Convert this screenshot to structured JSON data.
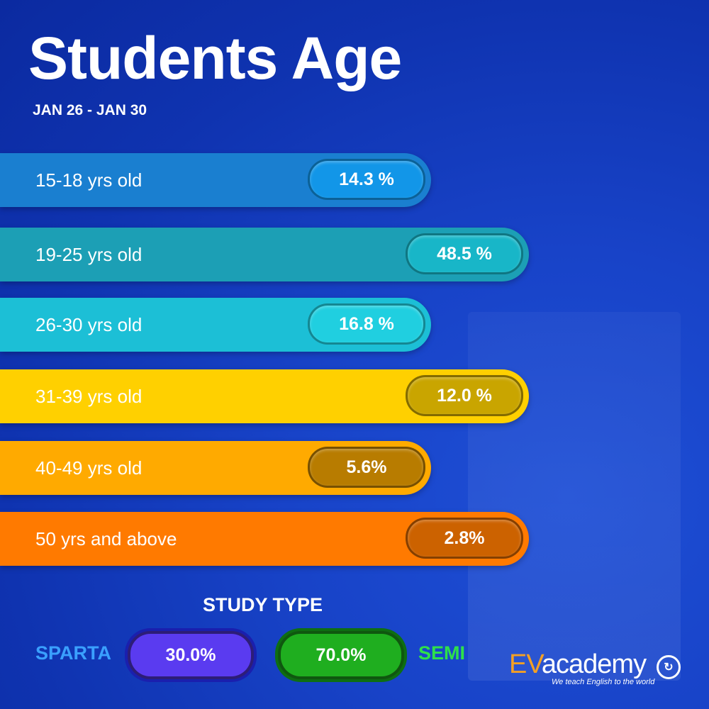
{
  "title": "Students Age",
  "subtitle": "JAN 26 - JAN 30",
  "chart_data": {
    "type": "bar",
    "title": "Students Age",
    "categories": [
      "15-18 yrs old",
      "19-25 yrs old",
      "26-30 yrs old",
      "31-39 yrs old",
      "40-49 yrs old",
      "50 yrs and above"
    ],
    "values": [
      14.3,
      48.5,
      16.8,
      12.0,
      5.6,
      2.8
    ],
    "value_labels": [
      "14.3 %",
      "48.5 %",
      "16.8 %",
      "12.0 %",
      "5.6%",
      "2.8%"
    ],
    "colors": [
      "#1a7fd0",
      "#1c9fb5",
      "#1cbfd6",
      "#ffd000",
      "#ffaa00",
      "#ff7a00"
    ],
    "pill_colors": [
      "#1296e8",
      "#18b6c8",
      "#20cfe0",
      "#c9a500",
      "#b87c00",
      "#cc6200"
    ]
  },
  "study_type": {
    "title": "STUDY TYPE",
    "sparta": {
      "label": "SPARTA",
      "value": "30.0%",
      "color": "#3aa0ff",
      "pill_color": "#5a3bf0"
    },
    "semi": {
      "label": "SEMI",
      "value": "70.0%",
      "color": "#2ee04a",
      "pill_color": "#1fae1f"
    }
  },
  "logo": {
    "ev": "EV",
    "academy": "academy",
    "tagline": "We teach English to the world"
  }
}
